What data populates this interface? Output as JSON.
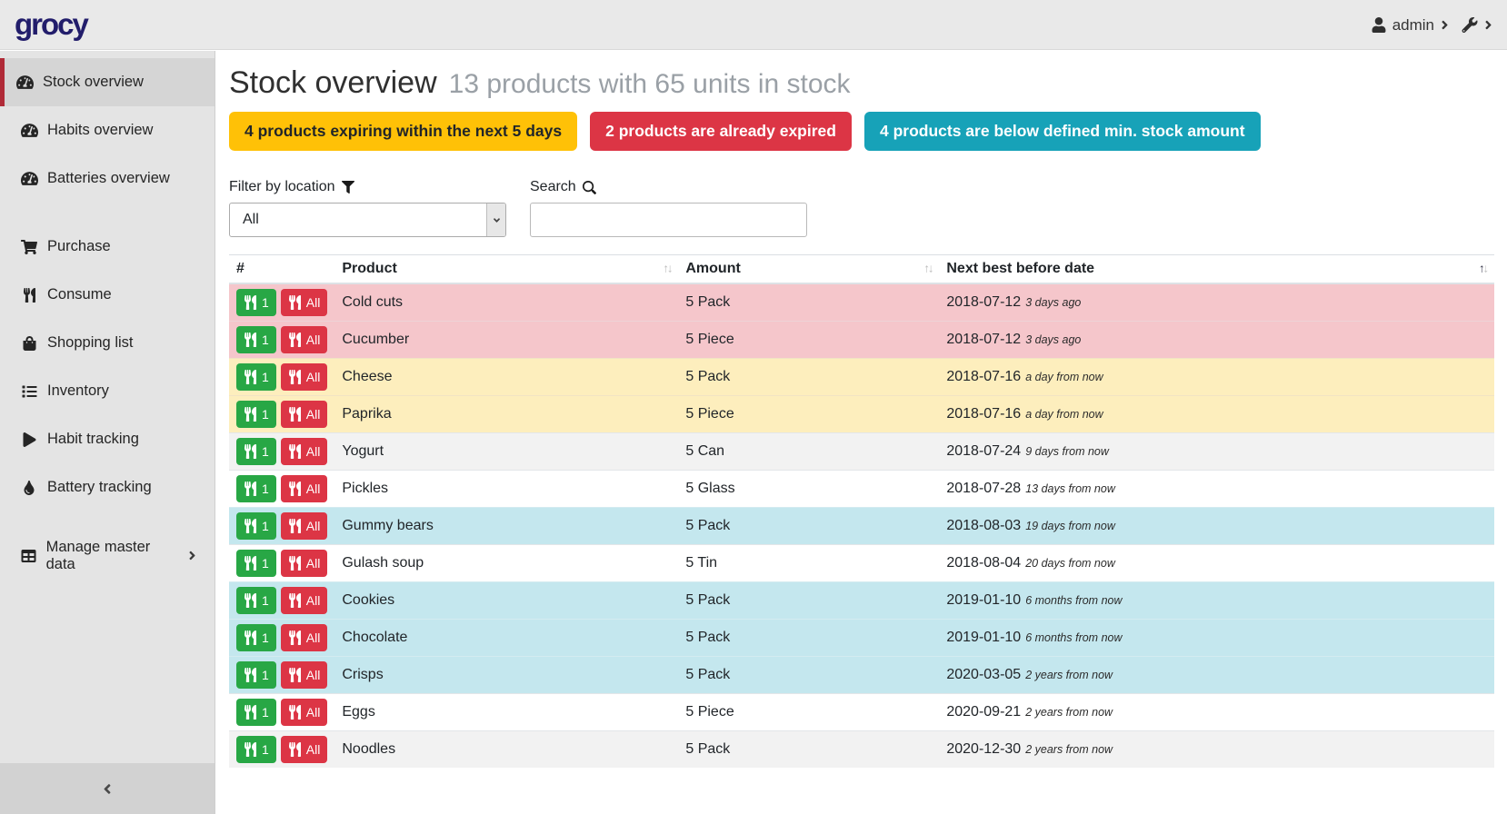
{
  "topbar": {
    "logo": "grocy",
    "user_label": "admin",
    "user_icon": "user-icon",
    "settings_icon": "wrench-icon"
  },
  "sidebar": {
    "items": [
      {
        "label": "Stock overview",
        "icon": "gauge-icon",
        "active": true
      },
      {
        "label": "Habits overview",
        "icon": "gauge-icon"
      },
      {
        "label": "Batteries overview",
        "icon": "gauge-icon"
      },
      {
        "spacer": true
      },
      {
        "label": "Purchase",
        "icon": "cart-icon"
      },
      {
        "label": "Consume",
        "icon": "utensils-icon"
      },
      {
        "label": "Shopping list",
        "icon": "bag-icon"
      },
      {
        "label": "Inventory",
        "icon": "list-icon"
      },
      {
        "label": "Habit tracking",
        "icon": "play-icon"
      },
      {
        "label": "Battery tracking",
        "icon": "droplet-icon"
      },
      {
        "spacer": true
      },
      {
        "label": "Manage master data",
        "icon": "table-icon",
        "has_submenu": true
      }
    ],
    "collapse_icon": "angle-left-icon"
  },
  "page": {
    "title": "Stock overview",
    "subtitle": "13 products with 65 units in stock"
  },
  "alerts": [
    {
      "text": "4 products expiring within the next 5 days",
      "type": "warning"
    },
    {
      "text": "2 products are already expired",
      "type": "danger"
    },
    {
      "text": "4 products are below defined min. stock amount",
      "type": "info"
    }
  ],
  "filters": {
    "location_label": "Filter by location",
    "location_icon": "filter-icon",
    "location_value": "All",
    "search_label": "Search",
    "search_icon": "search-icon",
    "search_value": ""
  },
  "table": {
    "columns": [
      {
        "label": "#",
        "sortable": false
      },
      {
        "label": "Product",
        "sortable": true
      },
      {
        "label": "Amount",
        "sortable": true
      },
      {
        "label": "Next best before date",
        "sortable": true,
        "sorted": "asc"
      }
    ],
    "consume_one_label": "1",
    "consume_all_label": "All",
    "rows": [
      {
        "product": "Cold cuts",
        "amount": "5 Pack",
        "best_before": "2018-07-12",
        "note": "3 days ago",
        "status": "expired"
      },
      {
        "product": "Cucumber",
        "amount": "5 Piece",
        "best_before": "2018-07-12",
        "note": "3 days ago",
        "status": "expired"
      },
      {
        "product": "Cheese",
        "amount": "5 Pack",
        "best_before": "2018-07-16",
        "note": "a day from now",
        "status": "expiring"
      },
      {
        "product": "Paprika",
        "amount": "5 Piece",
        "best_before": "2018-07-16",
        "note": "a day from now",
        "status": "expiring"
      },
      {
        "product": "Yogurt",
        "amount": "5 Can",
        "best_before": "2018-07-24",
        "note": "9 days from now",
        "status": "stripe"
      },
      {
        "product": "Pickles",
        "amount": "5 Glass",
        "best_before": "2018-07-28",
        "note": "13 days from now",
        "status": "none"
      },
      {
        "product": "Gummy bears",
        "amount": "5 Pack",
        "best_before": "2018-08-03",
        "note": "19 days from now",
        "status": "below-min"
      },
      {
        "product": "Gulash soup",
        "amount": "5 Tin",
        "best_before": "2018-08-04",
        "note": "20 days from now",
        "status": "none"
      },
      {
        "product": "Cookies",
        "amount": "5 Pack",
        "best_before": "2019-01-10",
        "note": "6 months from now",
        "status": "below-min"
      },
      {
        "product": "Chocolate",
        "amount": "5 Pack",
        "best_before": "2019-01-10",
        "note": "6 months from now",
        "status": "below-min"
      },
      {
        "product": "Crisps",
        "amount": "5 Pack",
        "best_before": "2020-03-05",
        "note": "2 years from now",
        "status": "below-min"
      },
      {
        "product": "Eggs",
        "amount": "5 Piece",
        "best_before": "2020-09-21",
        "note": "2 years from now",
        "status": "none"
      },
      {
        "product": "Noodles",
        "amount": "5 Pack",
        "best_before": "2020-12-30",
        "note": "2 years from now",
        "status": "stripe"
      }
    ]
  },
  "colors": {
    "brand": "#221d6b",
    "warning": "#ffc107",
    "danger": "#dc3545",
    "info": "#17a2b8",
    "success": "#28a745",
    "active_border": "#b02a37",
    "row_expired": "#f5c6cb",
    "row_expiring": "#fdeebd",
    "row_below_min": "#c4e7ee",
    "row_stripe": "#f2f2f2"
  }
}
